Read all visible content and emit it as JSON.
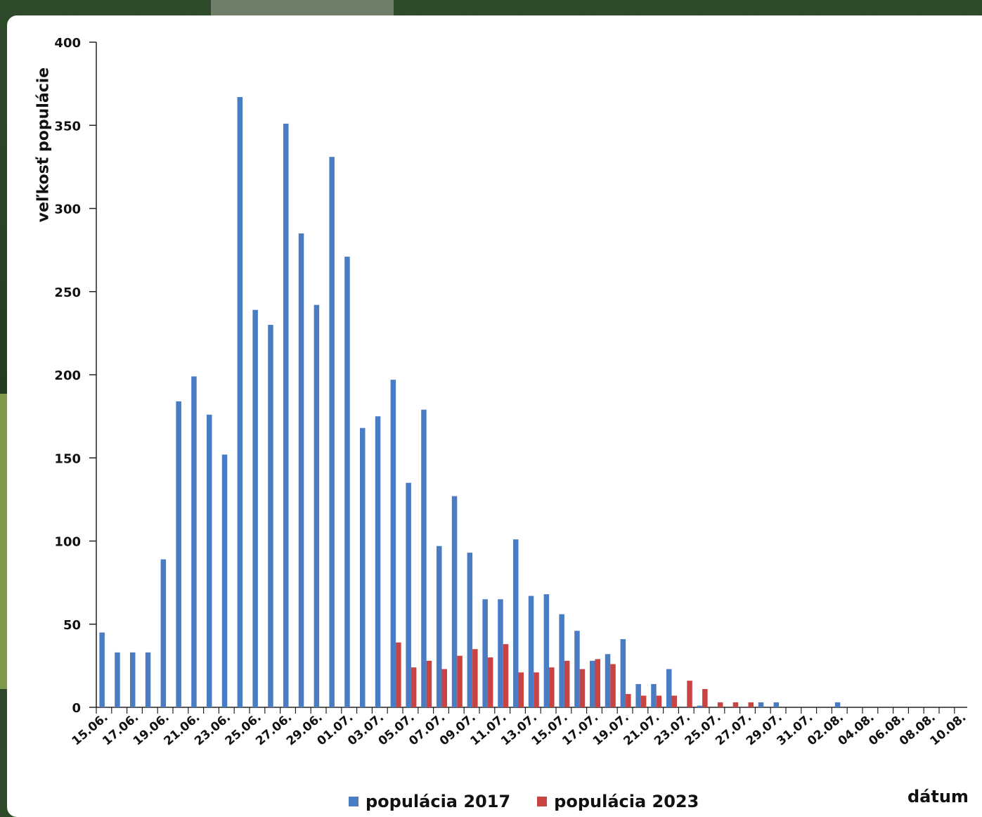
{
  "chart_data": {
    "type": "bar",
    "title": "",
    "xlabel": "dátum",
    "ylabel": "veľkosť populácie",
    "ylim": [
      0,
      400
    ],
    "yticks": [
      0,
      50,
      100,
      150,
      200,
      250,
      300,
      350,
      400
    ],
    "legend_position": "bottom",
    "categories": [
      "15.06.",
      "16.06.",
      "17.06.",
      "18.06.",
      "19.06.",
      "20.06.",
      "21.06.",
      "22.06.",
      "23.06.",
      "24.06.",
      "25.06.",
      "26.06.",
      "27.06.",
      "28.06.",
      "29.06.",
      "30.06.",
      "01.07.",
      "02.07.",
      "03.07.",
      "04.07.",
      "05.07.",
      "06.07.",
      "07.07.",
      "08.07.",
      "09.07.",
      "10.07.",
      "11.07.",
      "12.07.",
      "13.07.",
      "14.07.",
      "15.07.",
      "16.07.",
      "17.07.",
      "18.07.",
      "19.07.",
      "20.07.",
      "21.07.",
      "22.07.",
      "23.07.",
      "24.07.",
      "25.07.",
      "26.07.",
      "27.07.",
      "28.07.",
      "29.07.",
      "30.07.",
      "31.07.",
      "01.08.",
      "02.08.",
      "03.08.",
      "04.08.",
      "05.08.",
      "06.08.",
      "07.08.",
      "08.08.",
      "09.08.",
      "10.08."
    ],
    "tick_labels": [
      "15.06.",
      "17.06.",
      "19.06.",
      "21.06.",
      "23.06.",
      "25.06.",
      "27.06.",
      "29.06.",
      "01.07.",
      "03.07.",
      "05.07.",
      "07.07.",
      "09.07.",
      "11.07.",
      "13.07.",
      "15.07.",
      "17.07.",
      "19.07.",
      "21.07.",
      "23.07.",
      "25.07.",
      "27.07.",
      "29.07.",
      "31.07.",
      "02.08.",
      "04.08.",
      "06.08.",
      "08.08.",
      "10.08."
    ],
    "series": [
      {
        "name": "populácia 2017",
        "color": "#4a7cc4",
        "values": [
          45,
          33,
          33,
          33,
          89,
          184,
          199,
          176,
          152,
          367,
          239,
          230,
          351,
          285,
          242,
          331,
          271,
          168,
          175,
          197,
          135,
          179,
          97,
          127,
          93,
          65,
          65,
          101,
          67,
          68,
          56,
          46,
          28,
          32,
          41,
          14,
          14,
          23,
          0,
          1,
          0,
          0,
          0,
          3,
          3,
          0,
          0,
          0,
          3,
          0,
          0,
          0,
          0,
          0,
          0,
          0,
          0
        ]
      },
      {
        "name": "populácia 2023",
        "color": "#c94343",
        "values": [
          0,
          0,
          0,
          0,
          0,
          0,
          0,
          0,
          0,
          0,
          0,
          0,
          0,
          0,
          0,
          0,
          0,
          0,
          0,
          39,
          24,
          28,
          23,
          31,
          35,
          30,
          38,
          21,
          21,
          24,
          28,
          23,
          29,
          26,
          8,
          7,
          7,
          7,
          16,
          11,
          3,
          3,
          3,
          0,
          0,
          0,
          0,
          0,
          0,
          0,
          0,
          0,
          0,
          0,
          0,
          0,
          0
        ]
      }
    ]
  }
}
